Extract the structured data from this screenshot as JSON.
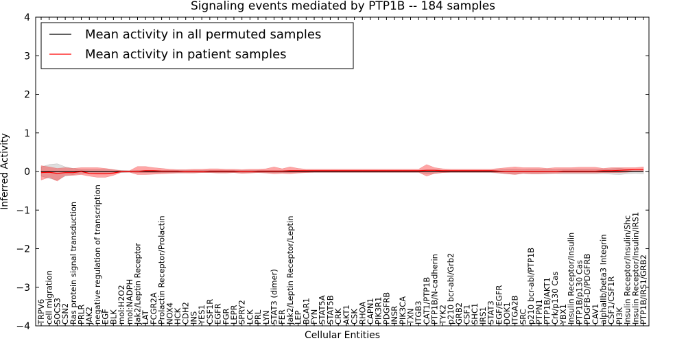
{
  "chart_data": {
    "type": "line",
    "title": "Signaling events mediated by PTP1B -- 184 samples",
    "xlabel": "Cellular Entities",
    "ylabel": "Inferred Activity",
    "ylim": [
      -4,
      4
    ],
    "yticks": [
      -4,
      -3,
      -2,
      -1,
      0,
      1,
      2,
      3,
      4
    ],
    "ytick_labels": [
      "−4",
      "−3",
      "−2",
      "−1",
      "0",
      "1",
      "2",
      "3",
      "4"
    ],
    "grid": false,
    "legend_position": "top-left",
    "categories": [
      "TRPV6",
      "cell migration",
      "SOCS3",
      "CSN2",
      "Ras protein signal transduction",
      "PRLR",
      "JAK2",
      "negative regulation of transcription",
      "EGF",
      "BLK",
      "mol:H2O2",
      "mol:NADPH",
      "Jak2/Leptin Receptor",
      "LAT",
      "FCGR2A",
      "Prolactin Receptor/Prolactin",
      "NOX4",
      "HCK",
      "CDH2",
      "INS",
      "YES1",
      "CSF1R",
      "EGFR",
      "FGR",
      "LEPR",
      "SPRY2",
      "LCK",
      "PRL",
      "LYN",
      "STAT3 (dimer)",
      "FER",
      "Jak2/Leptin Receptor/Leptin",
      "LEP",
      "BCAR1",
      "FYN",
      "STAT5A",
      "STAT5B",
      "CRK",
      "AKT1",
      "CSK",
      "RHOA",
      "CAPN1",
      "PIK3R1",
      "PDGFRB",
      "INSR",
      "PIK3CA",
      "TXN",
      "ITGB3",
      "CAT1/PTP1B",
      "PTP1B/N-cadherin",
      "TYK2",
      "p210 bcr-abl/Grb2",
      "GRB2",
      "CSF1",
      "SHC1",
      "IRS1",
      "STAT3",
      "EGF/EGFR",
      "DOK1",
      "ITGA2B",
      "SRC",
      "p210 bcr-abl/PTP1B",
      "PTPN1",
      "PTP1B/AKT1",
      "Crk/p130 Cas",
      "YBX1",
      "Insulin Receptor/Insulin",
      "PTP1B/p130 Cas",
      "PDGFB-D/PDGFRB",
      "CAV1",
      "alphaIIb/beta3 Integrin",
      "CSF1/CSF1R",
      "PI3K",
      "Insulin Receptor/Insulin/Shc",
      "Insulin Receptor/Insulin/IRS1",
      "PTP1B/IRS1/GRB2"
    ],
    "series": [
      {
        "name": "Mean activity in all permuted samples",
        "color": "#000000",
        "values": [
          0.0,
          0.0,
          0.0,
          0.0,
          0.0,
          0.01,
          0.0,
          0.0,
          0.0,
          0.0,
          0.0,
          0.0,
          0.0,
          0.0,
          0.0,
          0.0,
          0.0,
          0.0,
          0.0,
          0.0,
          0.0,
          0.0,
          0.0,
          0.0,
          0.0,
          0.0,
          0.0,
          0.0,
          0.0,
          0.0,
          0.0,
          0.0,
          0.0,
          0.0,
          0.0,
          0.0,
          0.0,
          0.0,
          0.0,
          0.0,
          0.0,
          0.0,
          0.0,
          0.0,
          0.0,
          0.0,
          0.0,
          0.0,
          0.0,
          0.0,
          0.0,
          0.0,
          0.0,
          0.0,
          0.0,
          0.0,
          0.0,
          0.0,
          0.0,
          0.0,
          0.0,
          0.0,
          0.0,
          0.0,
          0.0,
          0.0,
          0.0,
          0.0,
          0.0,
          0.0,
          0.0,
          0.0,
          0.0,
          0.0,
          0.0,
          0.0
        ],
        "lower": [
          -0.12,
          -0.18,
          -0.22,
          -0.12,
          -0.08,
          -0.05,
          -0.05,
          -0.05,
          -0.05,
          -0.04,
          -0.03,
          -0.02,
          -0.03,
          -0.03,
          -0.03,
          -0.03,
          -0.03,
          -0.03,
          -0.03,
          -0.03,
          -0.03,
          -0.03,
          -0.03,
          -0.03,
          -0.03,
          -0.03,
          -0.03,
          -0.03,
          -0.03,
          -0.03,
          -0.03,
          -0.03,
          -0.03,
          -0.03,
          -0.03,
          -0.03,
          -0.03,
          -0.03,
          -0.03,
          -0.03,
          -0.03,
          -0.03,
          -0.03,
          -0.03,
          -0.03,
          -0.03,
          -0.03,
          -0.03,
          -0.05,
          -0.05,
          -0.03,
          -0.03,
          -0.03,
          -0.03,
          -0.03,
          -0.03,
          -0.03,
          -0.04,
          -0.06,
          -0.06,
          -0.05,
          -0.06,
          -0.06,
          -0.06,
          -0.05,
          -0.06,
          -0.06,
          -0.06,
          -0.06,
          -0.06,
          -0.06,
          -0.07,
          -0.08,
          -0.06,
          -0.05,
          -0.06
        ],
        "upper": [
          0.12,
          0.18,
          0.2,
          0.12,
          0.08,
          0.05,
          0.05,
          0.05,
          0.05,
          0.04,
          0.03,
          0.02,
          0.03,
          0.03,
          0.03,
          0.03,
          0.03,
          0.03,
          0.03,
          0.03,
          0.03,
          0.03,
          0.03,
          0.03,
          0.03,
          0.03,
          0.03,
          0.03,
          0.03,
          0.03,
          0.03,
          0.03,
          0.03,
          0.03,
          0.03,
          0.03,
          0.03,
          0.03,
          0.03,
          0.03,
          0.03,
          0.03,
          0.03,
          0.03,
          0.03,
          0.03,
          0.03,
          0.03,
          0.05,
          0.05,
          0.03,
          0.03,
          0.03,
          0.03,
          0.03,
          0.03,
          0.03,
          0.04,
          0.06,
          0.06,
          0.05,
          0.06,
          0.06,
          0.06,
          0.05,
          0.06,
          0.06,
          0.06,
          0.06,
          0.06,
          0.06,
          0.07,
          0.08,
          0.06,
          0.05,
          0.06
        ]
      },
      {
        "name": "Mean activity in patient samples",
        "color": "#ff0000",
        "values": [
          -0.03,
          -0.02,
          -0.05,
          -0.03,
          -0.03,
          0.0,
          -0.05,
          -0.06,
          -0.06,
          -0.04,
          0.0,
          0.0,
          0.0,
          0.02,
          0.02,
          0.01,
          0.01,
          0.01,
          0.0,
          0.0,
          0.0,
          0.01,
          0.01,
          0.01,
          0.01,
          0.0,
          0.0,
          0.01,
          0.01,
          0.01,
          0.01,
          0.02,
          0.02,
          0.02,
          0.02,
          0.02,
          0.02,
          0.02,
          0.02,
          0.02,
          0.02,
          0.02,
          0.02,
          0.02,
          0.02,
          0.02,
          0.02,
          0.02,
          0.03,
          0.03,
          0.02,
          0.02,
          0.02,
          0.02,
          0.02,
          0.02,
          0.02,
          0.01,
          0.0,
          0.0,
          0.0,
          0.0,
          0.0,
          0.0,
          0.0,
          0.01,
          0.01,
          0.01,
          0.01,
          0.01,
          0.02,
          0.02,
          0.03,
          0.04,
          0.05,
          0.05
        ],
        "lower": [
          -0.22,
          -0.15,
          -0.25,
          -0.1,
          -0.1,
          -0.08,
          -0.12,
          -0.15,
          -0.15,
          -0.1,
          -0.02,
          -0.02,
          -0.08,
          -0.08,
          -0.07,
          -0.06,
          -0.05,
          -0.04,
          -0.04,
          -0.04,
          -0.03,
          -0.03,
          -0.04,
          -0.04,
          -0.03,
          -0.05,
          -0.04,
          -0.03,
          -0.04,
          -0.06,
          -0.05,
          -0.06,
          -0.04,
          -0.03,
          -0.02,
          -0.02,
          -0.02,
          -0.02,
          -0.02,
          -0.02,
          -0.02,
          -0.02,
          -0.02,
          -0.02,
          -0.02,
          -0.02,
          -0.02,
          -0.02,
          -0.12,
          -0.05,
          -0.03,
          -0.02,
          -0.02,
          -0.02,
          -0.02,
          -0.02,
          -0.02,
          -0.04,
          -0.06,
          -0.08,
          -0.05,
          -0.06,
          -0.06,
          -0.05,
          -0.05,
          -0.04,
          -0.04,
          -0.04,
          -0.04,
          -0.04,
          -0.03,
          -0.03,
          -0.03,
          -0.02,
          0.0,
          0.0
        ],
        "upper": [
          0.15,
          0.12,
          0.08,
          0.1,
          0.08,
          0.1,
          0.1,
          0.1,
          0.08,
          0.05,
          0.02,
          0.02,
          0.13,
          0.13,
          0.1,
          0.08,
          0.06,
          0.05,
          0.05,
          0.06,
          0.06,
          0.07,
          0.07,
          0.06,
          0.06,
          0.05,
          0.06,
          0.06,
          0.07,
          0.12,
          0.07,
          0.12,
          0.08,
          0.06,
          0.06,
          0.06,
          0.06,
          0.06,
          0.06,
          0.06,
          0.06,
          0.06,
          0.06,
          0.06,
          0.06,
          0.06,
          0.06,
          0.06,
          0.18,
          0.1,
          0.07,
          0.06,
          0.06,
          0.06,
          0.06,
          0.06,
          0.06,
          0.08,
          0.1,
          0.12,
          0.1,
          0.1,
          0.1,
          0.08,
          0.1,
          0.1,
          0.1,
          0.11,
          0.11,
          0.11,
          0.08,
          0.1,
          0.1,
          0.1,
          0.1,
          0.12
        ]
      }
    ]
  }
}
